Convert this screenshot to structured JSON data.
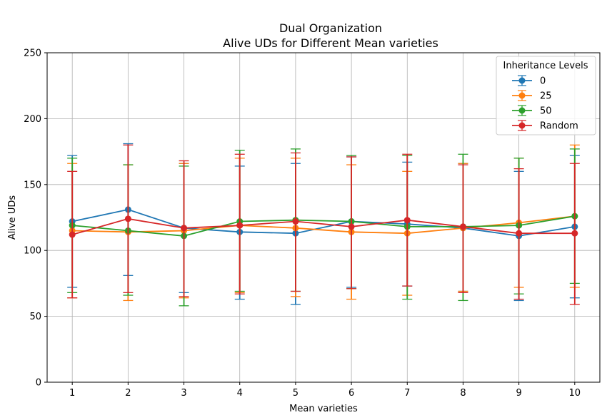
{
  "chart_data": {
    "type": "line",
    "title": "Dual Organization",
    "subtitle": "Alive UDs for Different Mean varieties",
    "xlabel": "Mean varieties",
    "ylabel": "Alive UDs",
    "x": [
      1,
      2,
      3,
      4,
      5,
      6,
      7,
      8,
      9,
      10
    ],
    "xlim": [
      0.55,
      10.45
    ],
    "ylim": [
      0,
      250
    ],
    "yticks": [
      0,
      50,
      100,
      150,
      200,
      250
    ],
    "grid": true,
    "legend_title": "Inheritance Levels",
    "legend_position": "top-right",
    "error_bars": true,
    "series": [
      {
        "name": "0",
        "color": "#1f77b4",
        "values": [
          122,
          131,
          117,
          114,
          113,
          122,
          120,
          117,
          111,
          118
        ],
        "err_low": [
          72,
          81,
          68,
          63,
          59,
          72,
          73,
          69,
          62,
          64
        ],
        "err_high": [
          172,
          181,
          166,
          164,
          166,
          171,
          167,
          166,
          160,
          172
        ]
      },
      {
        "name": "25",
        "color": "#ff7f0e",
        "values": [
          115,
          114,
          115,
          119,
          117,
          114,
          113,
          117,
          121,
          126
        ],
        "err_low": [
          64,
          62,
          64,
          68,
          65,
          63,
          66,
          69,
          72,
          72
        ],
        "err_high": [
          166,
          165,
          166,
          170,
          170,
          165,
          160,
          166,
          170,
          180
        ]
      },
      {
        "name": "50",
        "color": "#2ca02c",
        "values": [
          119,
          115,
          111,
          122,
          123,
          122,
          118,
          118,
          119,
          126
        ],
        "err_low": [
          68,
          66,
          58,
          69,
          69,
          71,
          63,
          62,
          67,
          75
        ],
        "err_high": [
          170,
          165,
          164,
          176,
          177,
          172,
          172,
          173,
          170,
          177
        ]
      },
      {
        "name": "Random",
        "color": "#d62728",
        "values": [
          112,
          124,
          117,
          119,
          122,
          118,
          123,
          118,
          113,
          113
        ],
        "err_low": [
          64,
          68,
          65,
          67,
          69,
          71,
          73,
          68,
          63,
          59
        ],
        "err_high": [
          160,
          180,
          168,
          173,
          174,
          171,
          173,
          165,
          162,
          166
        ]
      }
    ]
  }
}
